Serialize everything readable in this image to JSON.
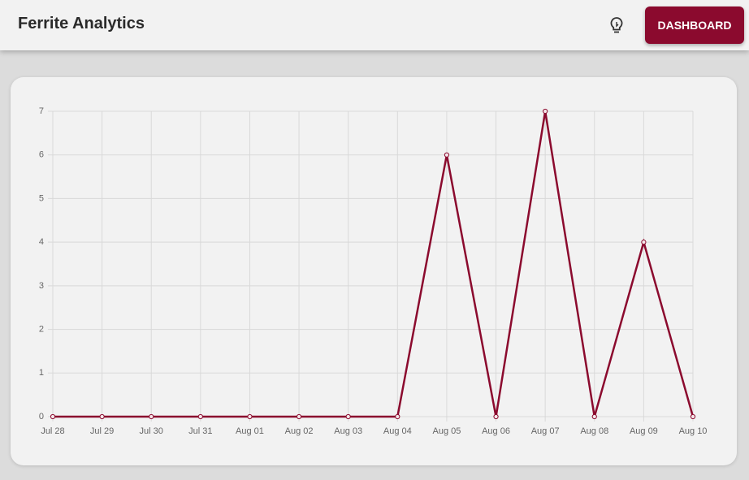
{
  "header": {
    "title": "Ferrite Analytics",
    "button": "DASHBOARD"
  },
  "chart_data": {
    "type": "line",
    "categories": [
      "Jul 28",
      "Jul 29",
      "Jul 30",
      "Jul 31",
      "Aug 01",
      "Aug 02",
      "Aug 03",
      "Aug 04",
      "Aug 05",
      "Aug 06",
      "Aug 07",
      "Aug 08",
      "Aug 09",
      "Aug 10"
    ],
    "values": [
      0,
      0,
      0,
      0,
      0,
      0,
      0,
      0,
      6,
      0,
      7,
      0,
      4,
      0
    ],
    "color": "#8b0a2e",
    "ylim": [
      0,
      7
    ],
    "yticks": [
      0,
      1,
      2,
      3,
      4,
      5,
      6,
      7
    ],
    "grid": true
  }
}
